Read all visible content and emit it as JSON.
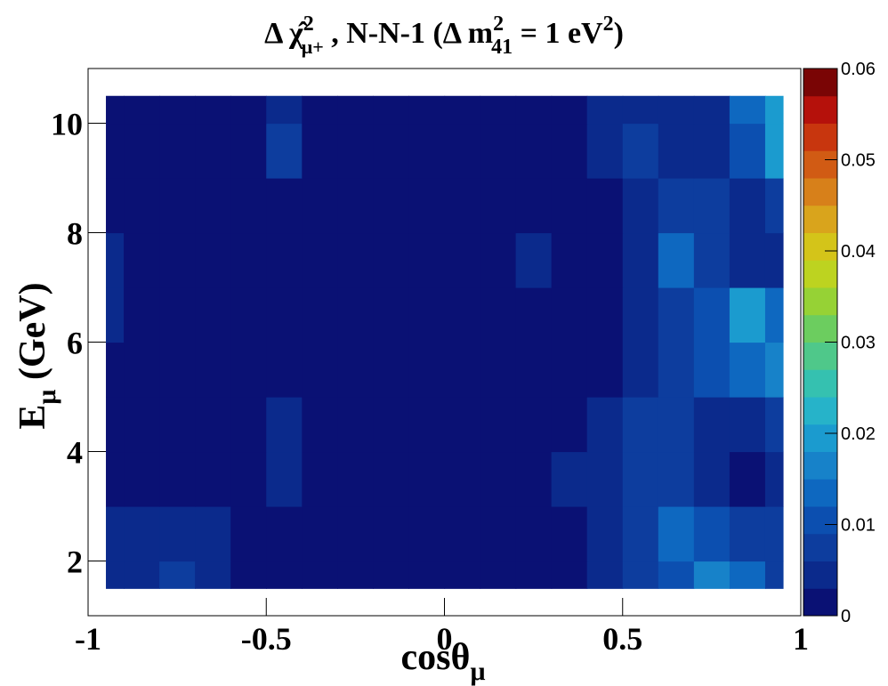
{
  "chart_data": {
    "type": "contour",
    "title": [
      "Δ  χ̂",
      "2",
      "μ+",
      " , N-N-1 (Δ m",
      "2",
      "41",
      " = 1 eV",
      "2",
      ")"
    ],
    "x_label": [
      "cosθ",
      "μ"
    ],
    "y_label": [
      "E",
      "μ",
      " (GeV)"
    ],
    "x": [
      -0.95,
      -0.85,
      -0.75,
      -0.65,
      -0.55,
      -0.45,
      -0.35,
      -0.25,
      -0.15,
      -0.05,
      0.05,
      0.15,
      0.25,
      0.35,
      0.45,
      0.55,
      0.65,
      0.75,
      0.85,
      0.95
    ],
    "y": [
      1.5,
      2.5,
      3.5,
      4.5,
      5.5,
      6.5,
      7.5,
      8.5,
      9.5,
      10.5
    ],
    "z": [
      [
        0.004,
        0.004,
        0.006,
        0.004,
        0.002,
        0.002,
        0.002,
        0.002,
        0.002,
        0.002,
        0.002,
        0.002,
        0.002,
        0.002,
        0.004,
        0.007,
        0.01,
        0.016,
        0.012,
        0.008
      ],
      [
        0.003,
        0.004,
        0.004,
        0.003,
        0.002,
        0.002,
        0.002,
        0.002,
        0.002,
        0.002,
        0.002,
        0.002,
        0.002,
        0.002,
        0.005,
        0.008,
        0.014,
        0.009,
        0.007,
        0.006
      ],
      [
        0.002,
        0.002,
        0.002,
        0.002,
        0.002,
        0.004,
        0.002,
        0.002,
        0.002,
        0.002,
        0.002,
        0.002,
        0.002,
        0.004,
        0.005,
        0.007,
        0.006,
        0.005,
        0.002,
        0.004
      ],
      [
        0.002,
        0.002,
        0.002,
        0.002,
        0.002,
        0.004,
        0.002,
        0.002,
        0.002,
        0.002,
        0.002,
        0.002,
        0.002,
        0.002,
        0.004,
        0.008,
        0.006,
        0.004,
        0.004,
        0.006
      ],
      [
        0.002,
        0.002,
        0.002,
        0.002,
        0.002,
        0.002,
        0.002,
        0.002,
        0.002,
        0.002,
        0.002,
        0.002,
        0.002,
        0.002,
        0.002,
        0.004,
        0.007,
        0.009,
        0.012,
        0.016
      ],
      [
        0.004,
        0.002,
        0.002,
        0.002,
        0.002,
        0.002,
        0.002,
        0.002,
        0.002,
        0.002,
        0.002,
        0.002,
        0.002,
        0.002,
        0.002,
        0.004,
        0.006,
        0.009,
        0.018,
        0.012
      ],
      [
        0.004,
        0.002,
        0.002,
        0.002,
        0.002,
        0.002,
        0.002,
        0.002,
        0.002,
        0.002,
        0.002,
        0.002,
        0.004,
        0.002,
        0.002,
        0.005,
        0.012,
        0.008,
        0.004,
        0.004
      ],
      [
        0.002,
        0.002,
        0.002,
        0.002,
        0.002,
        0.002,
        0.002,
        0.002,
        0.002,
        0.002,
        0.002,
        0.002,
        0.002,
        0.002,
        0.002,
        0.005,
        0.008,
        0.006,
        0.004,
        0.008
      ],
      [
        0.002,
        0.002,
        0.002,
        0.002,
        0.002,
        0.007,
        0.002,
        0.002,
        0.002,
        0.002,
        0.002,
        0.002,
        0.002,
        0.002,
        0.004,
        0.007,
        0.005,
        0.004,
        0.01,
        0.02
      ],
      [
        0.002,
        0.002,
        0.002,
        0.002,
        0.002,
        0.004,
        0.002,
        0.002,
        0.002,
        0.002,
        0.002,
        0.002,
        0.002,
        0.002,
        0.003,
        0.004,
        0.003,
        0.005,
        0.012,
        0.018
      ]
    ],
    "xlim": [
      -1,
      1
    ],
    "xticks": [
      -1,
      -0.5,
      0,
      0.5,
      1
    ],
    "ylim": [
      1,
      11
    ],
    "yticks": [
      2,
      4,
      6,
      8,
      10
    ],
    "zlim": [
      0,
      0.06
    ],
    "zticks": [
      0,
      0.01,
      0.02,
      0.03,
      0.04,
      0.05,
      0.06
    ],
    "colors": [
      "#0a1174",
      "#0b2a8c",
      "#0d3d9e",
      "#0c4fb0",
      "#0e68c0",
      "#1782c9",
      "#1b9bcf",
      "#26b3c9",
      "#35c1b0",
      "#4fc88a",
      "#6ccd5f",
      "#96d235",
      "#bdd320",
      "#d4c419",
      "#d9a41c",
      "#d7801a",
      "#d15b14",
      "#c8360e",
      "#b5110b",
      "#7a0505"
    ]
  }
}
